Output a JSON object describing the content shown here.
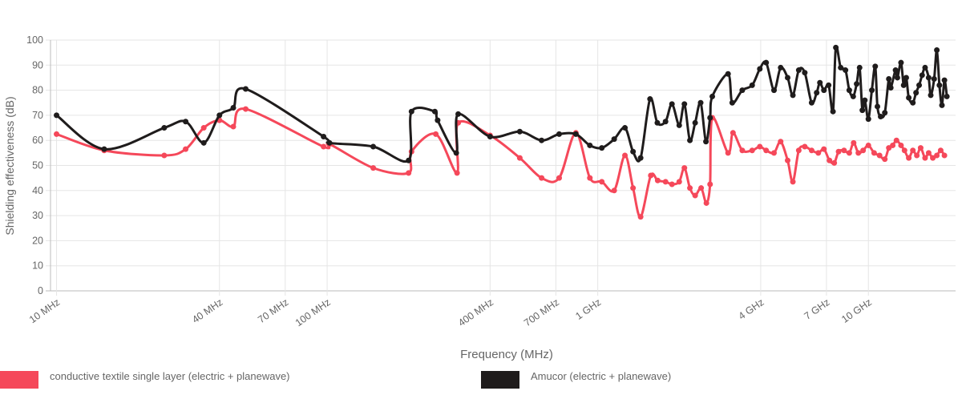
{
  "chart_data": {
    "type": "line",
    "x_label": "Frequency (MHz)",
    "y_label": "Shielding effectiveness (dB)",
    "log_x": true,
    "grid": true,
    "legend": "bottom",
    "xlim": [
      9.5,
      21000
    ],
    "ylim": [
      0,
      100
    ],
    "yticks": [
      0,
      10,
      20,
      30,
      40,
      50,
      60,
      70,
      80,
      90,
      100
    ],
    "xticks": [
      {
        "value": 10,
        "label": "10 MHz"
      },
      {
        "value": 40,
        "label": "40 MHz"
      },
      {
        "value": 70,
        "label": "70 MHz"
      },
      {
        "value": 100,
        "label": "100 MHz"
      },
      {
        "value": 400,
        "label": "400 MHz"
      },
      {
        "value": 700,
        "label": "700 MHz"
      },
      {
        "value": 1000,
        "label": "1 GHz"
      },
      {
        "value": 4000,
        "label": "4 GHz"
      },
      {
        "value": 7000,
        "label": "7 GHz"
      },
      {
        "value": 10000,
        "label": "10 GHz"
      }
    ],
    "series": [
      {
        "name": "conductive textile single layer (electric + planewave)",
        "color": "#f5485a",
        "x": [
          10,
          15,
          25,
          30,
          35,
          40,
          45,
          50,
          97,
          102,
          148,
          200,
          205,
          252,
          302,
          305,
          400,
          515,
          620,
          720,
          830,
          935,
          1035,
          1150,
          1260,
          1350,
          1440,
          1570,
          1665,
          1780,
          1880,
          2000,
          2090,
          2190,
          2290,
          2410,
          2520,
          2600,
          2650,
          3030,
          3160,
          3420,
          3720,
          3970,
          4190,
          4480,
          4740,
          5030,
          5260,
          5530,
          5820,
          6170,
          6530,
          6850,
          7180,
          7480,
          7760,
          8130,
          8500,
          8820,
          9180,
          9560,
          10000,
          10500,
          11000,
          11500,
          11900,
          12300,
          12700,
          13200,
          13600,
          14100,
          14600,
          15100,
          15600,
          16200,
          16700,
          17300,
          17900,
          18500,
          19100
        ],
        "values": [
          62.5,
          56,
          54,
          56.5,
          65,
          68,
          65.5,
          72.5,
          57.5,
          58.5,
          49,
          47,
          55.5,
          62.5,
          47,
          67,
          62,
          53,
          45,
          45,
          63,
          45,
          43.5,
          40,
          54,
          41,
          29.5,
          46,
          44,
          43.5,
          42.5,
          43.5,
          49,
          41,
          38,
          41,
          35,
          42.5,
          69,
          55,
          63,
          56,
          56,
          57.5,
          56,
          55,
          59.5,
          52,
          43.5,
          56,
          57.5,
          56,
          55,
          56.5,
          52,
          51,
          55.5,
          56,
          55,
          59,
          55,
          56,
          58,
          55,
          54,
          52.5,
          57,
          58,
          60,
          58,
          56,
          53,
          56,
          54,
          57,
          53,
          55,
          53,
          54,
          56,
          54
        ]
      },
      {
        "name": "Amucor (electric + planewave)",
        "color": "#1f1c1c",
        "x": [
          10,
          15,
          25,
          30,
          35,
          40,
          45,
          50,
          97,
          102,
          148,
          200,
          205,
          250,
          256,
          300,
          305,
          400,
          515,
          620,
          720,
          830,
          935,
          1035,
          1150,
          1260,
          1350,
          1440,
          1560,
          1660,
          1780,
          1880,
          2000,
          2090,
          2190,
          2290,
          2400,
          2510,
          2600,
          2650,
          3030,
          3140,
          3420,
          3720,
          3970,
          4190,
          4480,
          4740,
          5030,
          5260,
          5530,
          5820,
          6170,
          6440,
          6620,
          6850,
          7130,
          7400,
          7580,
          7900,
          8230,
          8500,
          8790,
          9050,
          9280,
          9500,
          9700,
          10000,
          10300,
          10600,
          10800,
          11100,
          11500,
          11900,
          12100,
          12600,
          12800,
          13200,
          13500,
          13800,
          14100,
          14600,
          15000,
          15400,
          15800,
          16200,
          16700,
          17000,
          17500,
          17900,
          18300,
          18700,
          19100,
          19500
        ],
        "values": [
          70,
          56.5,
          65,
          67.5,
          59,
          70,
          73,
          80.5,
          61.5,
          59,
          57.5,
          52,
          71.5,
          71.5,
          68,
          55,
          70.5,
          61.5,
          63.5,
          60,
          62.5,
          62.5,
          58,
          57,
          60.5,
          65,
          55.5,
          53,
          76.5,
          67,
          67.5,
          74.5,
          66,
          74.5,
          60,
          67,
          75,
          59.5,
          69,
          77.5,
          86.5,
          75,
          80,
          82,
          88.5,
          91,
          80,
          89,
          85,
          78,
          88,
          87,
          75,
          79,
          83,
          80,
          82,
          71.5,
          97,
          89,
          88,
          80,
          77.5,
          82.5,
          89,
          72,
          76,
          68.5,
          80,
          89.5,
          73.5,
          69.5,
          71,
          84.5,
          81,
          88,
          85,
          91,
          82,
          85,
          77,
          75,
          79,
          82,
          86,
          89,
          85,
          78,
          84.5,
          96,
          82,
          74,
          84,
          77.5
        ]
      }
    ]
  }
}
